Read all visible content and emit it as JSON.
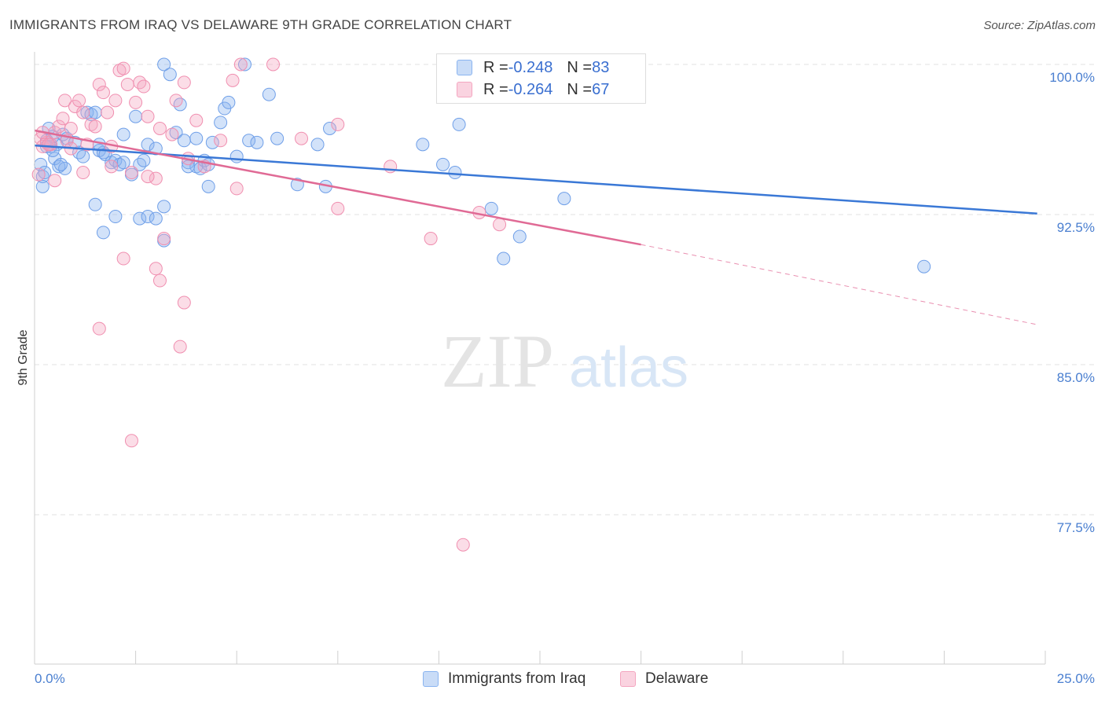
{
  "title": "IMMIGRANTS FROM IRAQ VS DELAWARE 9TH GRADE CORRELATION CHART",
  "source": "Source: ZipAtlas.com",
  "watermark": {
    "zip": "ZIP",
    "atlas": "atlas"
  },
  "legend_top": {
    "rows": [
      {
        "r_label": "R = ",
        "r_value": "-0.248",
        "n_label": "N = ",
        "n_value": "83",
        "color": "#8ab4f0"
      },
      {
        "r_label": "R = ",
        "r_value": "-0.264",
        "n_label": "N = ",
        "n_value": "67",
        "color": "#f4a6c0"
      }
    ]
  },
  "chart_data": {
    "type": "scatter",
    "title": "IMMIGRANTS FROM IRAQ VS DELAWARE 9TH GRADE CORRELATION CHART",
    "xlabel": "",
    "ylabel": "9th Grade",
    "xlim": [
      0,
      25
    ],
    "ylim": [
      69.0,
      101.0
    ],
    "x_ticks_labels": [
      "0.0%",
      "25.0%"
    ],
    "y_ticks": [
      100.0,
      92.5,
      85.0,
      77.5
    ],
    "y_ticks_labels": [
      "100.0%",
      "92.5%",
      "85.0%",
      "77.5%"
    ],
    "grid": true,
    "series": [
      {
        "name": "Immigrants from Iraq",
        "color": "#6f9fe8",
        "trend": {
          "x0": 0.0,
          "y0": 95.95,
          "x1": 24.8,
          "y1": 92.55,
          "dashed_to": 24.8
        },
        "points": [
          [
            0.15,
            95.0
          ],
          [
            0.2,
            94.4
          ],
          [
            0.25,
            94.6
          ],
          [
            0.3,
            96.2
          ],
          [
            0.35,
            96.8
          ],
          [
            0.4,
            95.9
          ],
          [
            0.45,
            96.4
          ],
          [
            0.5,
            95.3
          ],
          [
            0.55,
            96.0
          ],
          [
            0.6,
            94.9
          ],
          [
            0.7,
            96.5
          ],
          [
            0.75,
            94.8
          ],
          [
            0.8,
            96.3
          ],
          [
            1.0,
            96.1
          ],
          [
            1.1,
            95.6
          ],
          [
            1.2,
            95.4
          ],
          [
            1.3,
            97.6
          ],
          [
            1.4,
            97.5
          ],
          [
            1.5,
            97.6
          ],
          [
            1.6,
            95.7
          ],
          [
            1.7,
            95.6
          ],
          [
            1.75,
            95.5
          ],
          [
            1.9,
            95.1
          ],
          [
            2.0,
            95.2
          ],
          [
            2.1,
            95.0
          ],
          [
            2.2,
            96.5
          ],
          [
            2.4,
            94.5
          ],
          [
            2.5,
            97.4
          ],
          [
            2.6,
            95.0
          ],
          [
            2.7,
            95.2
          ],
          [
            2.8,
            96.0
          ],
          [
            3.0,
            95.8
          ],
          [
            3.2,
            100.0
          ],
          [
            3.35,
            99.5
          ],
          [
            3.6,
            98.0
          ],
          [
            3.5,
            96.6
          ],
          [
            3.7,
            96.2
          ],
          [
            3.8,
            95.1
          ],
          [
            4.0,
            94.9
          ],
          [
            4.1,
            94.8
          ],
          [
            4.2,
            95.2
          ],
          [
            4.3,
            95.0
          ],
          [
            4.4,
            96.1
          ],
          [
            4.0,
            96.3
          ],
          [
            4.6,
            97.1
          ],
          [
            4.7,
            97.8
          ],
          [
            4.8,
            98.1
          ],
          [
            5.0,
            95.4
          ],
          [
            5.2,
            100.0
          ],
          [
            5.3,
            96.2
          ],
          [
            5.5,
            96.1
          ],
          [
            5.8,
            98.5
          ],
          [
            6.0,
            96.3
          ],
          [
            6.5,
            94.0
          ],
          [
            7.0,
            96.0
          ],
          [
            7.2,
            93.9
          ],
          [
            7.3,
            96.8
          ],
          [
            2.0,
            92.4
          ],
          [
            2.6,
            92.3
          ],
          [
            2.8,
            92.4
          ],
          [
            3.0,
            92.3
          ],
          [
            3.2,
            92.9
          ],
          [
            1.5,
            93.0
          ],
          [
            1.7,
            91.6
          ],
          [
            3.2,
            91.2
          ],
          [
            4.3,
            93.9
          ],
          [
            9.6,
            96.0
          ],
          [
            10.1,
            95.0
          ],
          [
            10.4,
            94.6
          ],
          [
            10.5,
            97.0
          ],
          [
            11.3,
            92.8
          ],
          [
            12.0,
            91.4
          ],
          [
            11.6,
            90.3
          ],
          [
            13.1,
            93.3
          ],
          [
            14.1,
            100.0
          ],
          [
            22.0,
            89.9
          ],
          [
            0.2,
            93.9
          ],
          [
            0.3,
            95.9
          ],
          [
            0.65,
            95.0
          ],
          [
            1.6,
            96.0
          ],
          [
            2.2,
            95.1
          ],
          [
            3.8,
            94.9
          ],
          [
            0.45,
            95.7
          ]
        ]
      },
      {
        "name": "Delaware",
        "color": "#f08fb0",
        "trend": {
          "x0": 0.0,
          "y0": 96.7,
          "x1": 15.0,
          "y1": 91.0,
          "dashed_to": 24.8,
          "dash_end_y": 87.0
        },
        "points": [
          [
            0.1,
            94.5
          ],
          [
            0.15,
            96.3
          ],
          [
            0.2,
            95.9
          ],
          [
            0.3,
            96.1
          ],
          [
            0.4,
            96.0
          ],
          [
            0.5,
            96.6
          ],
          [
            0.6,
            96.9
          ],
          [
            0.7,
            97.3
          ],
          [
            0.75,
            98.2
          ],
          [
            0.8,
            96.2
          ],
          [
            0.9,
            95.8
          ],
          [
            1.0,
            97.9
          ],
          [
            1.1,
            98.2
          ],
          [
            1.2,
            97.6
          ],
          [
            1.3,
            96.0
          ],
          [
            1.4,
            97.0
          ],
          [
            1.5,
            96.9
          ],
          [
            1.6,
            99.0
          ],
          [
            1.8,
            97.6
          ],
          [
            1.7,
            98.6
          ],
          [
            1.9,
            95.9
          ],
          [
            2.0,
            98.2
          ],
          [
            2.1,
            99.7
          ],
          [
            2.2,
            99.8
          ],
          [
            2.3,
            99.0
          ],
          [
            2.5,
            98.1
          ],
          [
            2.6,
            99.1
          ],
          [
            2.7,
            98.9
          ],
          [
            2.8,
            97.4
          ],
          [
            3.1,
            96.8
          ],
          [
            3.4,
            96.5
          ],
          [
            3.5,
            98.2
          ],
          [
            3.7,
            99.1
          ],
          [
            4.0,
            97.2
          ],
          [
            4.6,
            96.2
          ],
          [
            4.9,
            99.2
          ],
          [
            5.1,
            100.0
          ],
          [
            5.9,
            100.0
          ],
          [
            6.6,
            96.3
          ],
          [
            2.4,
            94.6
          ],
          [
            1.9,
            94.9
          ],
          [
            3.0,
            94.3
          ],
          [
            2.8,
            94.4
          ],
          [
            5.0,
            93.8
          ],
          [
            3.8,
            95.3
          ],
          [
            4.2,
            94.9
          ],
          [
            0.5,
            94.2
          ],
          [
            1.2,
            94.6
          ],
          [
            2.2,
            90.3
          ],
          [
            3.0,
            89.8
          ],
          [
            3.1,
            89.2
          ],
          [
            3.7,
            88.1
          ],
          [
            3.6,
            85.9
          ],
          [
            1.6,
            86.8
          ],
          [
            2.4,
            81.2
          ],
          [
            3.2,
            91.3
          ],
          [
            7.5,
            92.8
          ],
          [
            7.5,
            97.0
          ],
          [
            8.8,
            94.9
          ],
          [
            9.8,
            91.3
          ],
          [
            10.4,
            100.0
          ],
          [
            11.0,
            92.6
          ],
          [
            11.5,
            92.0
          ],
          [
            10.6,
            76.0
          ],
          [
            0.2,
            96.6
          ],
          [
            0.35,
            96.0
          ],
          [
            0.9,
            96.8
          ]
        ]
      }
    ]
  },
  "bottom_legend": [
    {
      "label": "Immigrants from Iraq",
      "color": "#8ab4f0"
    },
    {
      "label": "Delaware",
      "color": "#f4a6c0"
    }
  ]
}
